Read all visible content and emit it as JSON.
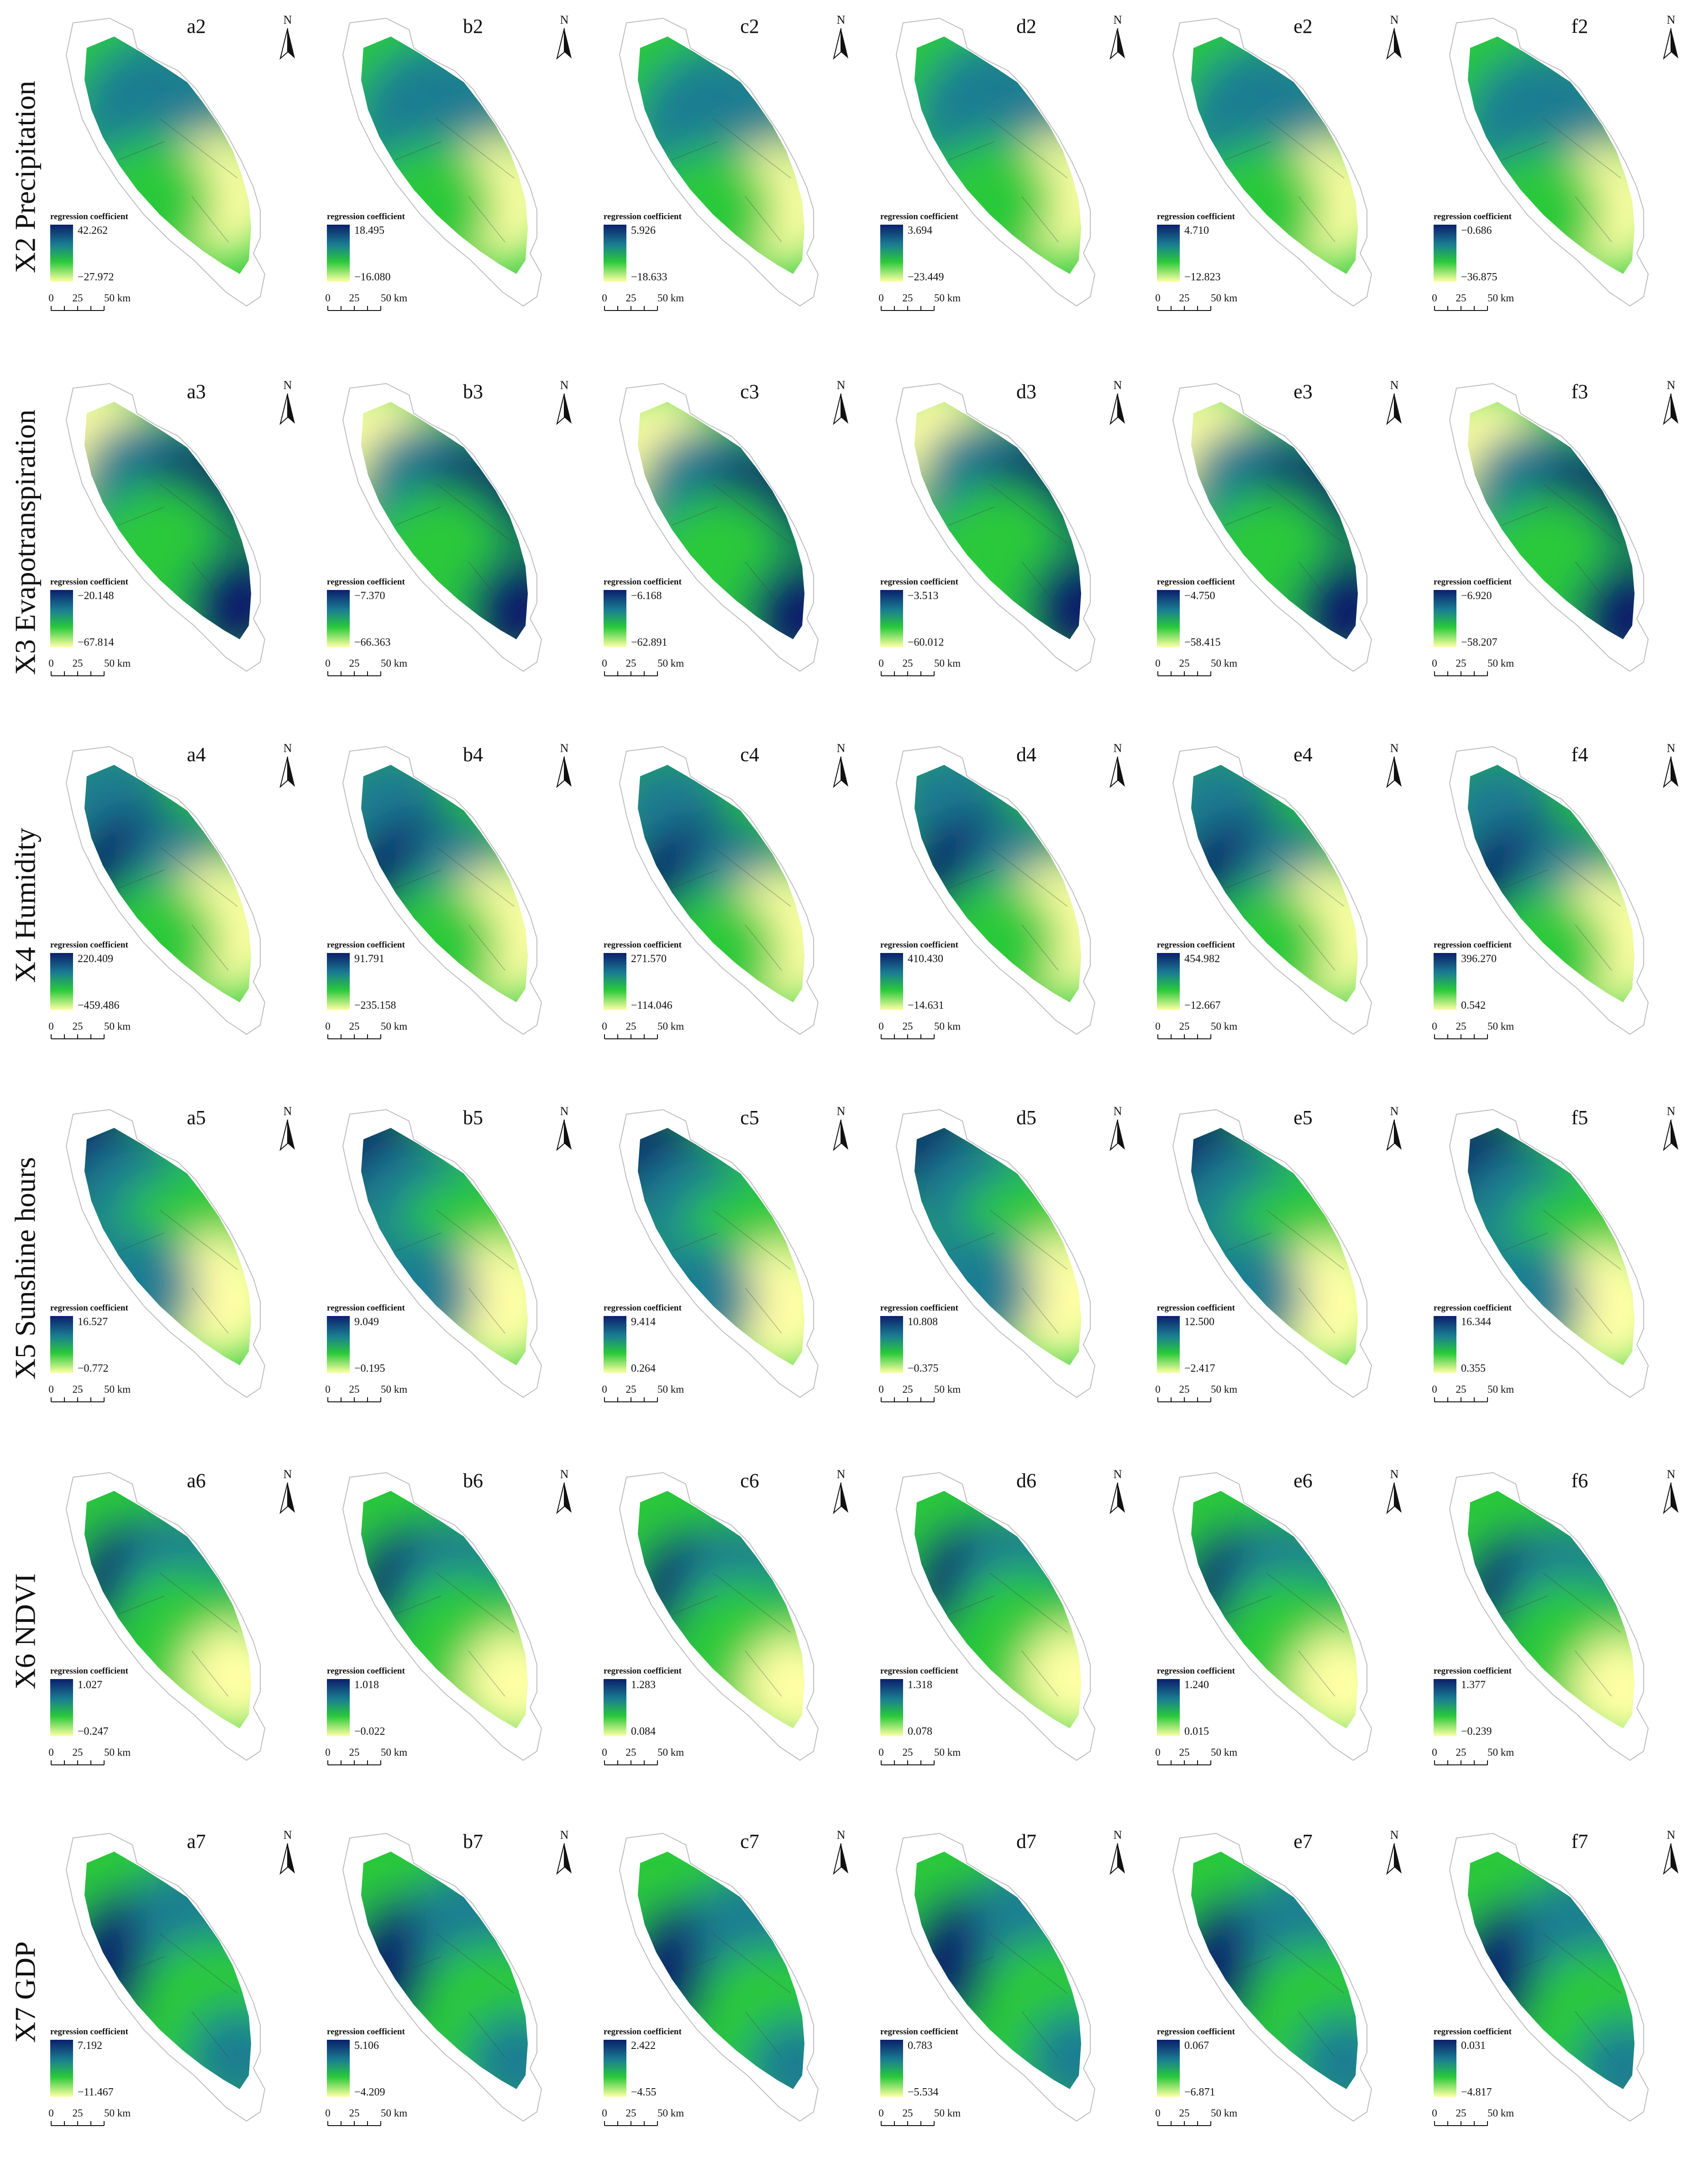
{
  "legend_title": "regression coefficient",
  "scale_bar": {
    "ticks": [
      "0",
      "25",
      "50 km"
    ]
  },
  "north_label": "N",
  "colors": {
    "high": "#0b1f6b",
    "mid_high": "#1a7d92",
    "mid": "#29c93a",
    "low": "#ffffa6",
    "outline": "#bdbdbd",
    "water": "#ffffff"
  },
  "columns": [
    "a",
    "b",
    "c",
    "d",
    "e",
    "f"
  ],
  "rows": [
    {
      "label": "X2 Precipitation",
      "panels": [
        {
          "id": "a2",
          "max": "42.262",
          "min": "−27.972"
        },
        {
          "id": "b2",
          "max": "18.495",
          "min": "−16.080"
        },
        {
          "id": "c2",
          "max": "5.926",
          "min": "−18.633"
        },
        {
          "id": "d2",
          "max": "3.694",
          "min": "−23.449"
        },
        {
          "id": "e2",
          "max": "4.710",
          "min": "−12.823"
        },
        {
          "id": "f2",
          "max": "−0.686",
          "min": "−36.875"
        }
      ]
    },
    {
      "label": "X3 Evapotranspiration",
      "panels": [
        {
          "id": "a3",
          "max": "−20.148",
          "min": "−67.814"
        },
        {
          "id": "b3",
          "max": "−7.370",
          "min": "−66.363"
        },
        {
          "id": "c3",
          "max": "−6.168",
          "min": "−62.891"
        },
        {
          "id": "d3",
          "max": "−3.513",
          "min": "−60.012"
        },
        {
          "id": "e3",
          "max": "−4.750",
          "min": "−58.415"
        },
        {
          "id": "f3",
          "max": "−6.920",
          "min": "−58.207"
        }
      ]
    },
    {
      "label": "X4 Humidity",
      "panels": [
        {
          "id": "a4",
          "max": "220.409",
          "min": "−459.486"
        },
        {
          "id": "b4",
          "max": "91.791",
          "min": "−235.158"
        },
        {
          "id": "c4",
          "max": "271.570",
          "min": "−114.046"
        },
        {
          "id": "d4",
          "max": "410.430",
          "min": "−14.631"
        },
        {
          "id": "e4",
          "max": "454.982",
          "min": "−12.667"
        },
        {
          "id": "f4",
          "max": "396.270",
          "min": "0.542"
        }
      ]
    },
    {
      "label": "X5 Sunshine hours",
      "panels": [
        {
          "id": "a5",
          "max": "16.527",
          "min": "−0.772"
        },
        {
          "id": "b5",
          "max": "9.049",
          "min": "−0.195"
        },
        {
          "id": "c5",
          "max": "9.414",
          "min": "0.264"
        },
        {
          "id": "d5",
          "max": "10.808",
          "min": "−0.375"
        },
        {
          "id": "e5",
          "max": "12.500",
          "min": "−2.417"
        },
        {
          "id": "f5",
          "max": "16.344",
          "min": "0.355"
        }
      ]
    },
    {
      "label": "X6 NDVI",
      "panels": [
        {
          "id": "a6",
          "max": "1.027",
          "min": "−0.247"
        },
        {
          "id": "b6",
          "max": "1.018",
          "min": "−0.022"
        },
        {
          "id": "c6",
          "max": "1.283",
          "min": "0.084"
        },
        {
          "id": "d6",
          "max": "1.318",
          "min": "0.078"
        },
        {
          "id": "e6",
          "max": "1.240",
          "min": "0.015"
        },
        {
          "id": "f6",
          "max": "1.377",
          "min": "−0.239"
        }
      ]
    },
    {
      "label": "X7 GDP",
      "panels": [
        {
          "id": "a7",
          "max": "7.192",
          "min": "−11.467"
        },
        {
          "id": "b7",
          "max": "5.106",
          "min": "−4.209"
        },
        {
          "id": "c7",
          "max": "2.422",
          "min": "−4.55"
        },
        {
          "id": "d7",
          "max": "0.783",
          "min": "−5.534"
        },
        {
          "id": "e7",
          "max": "0.067",
          "min": "−6.871"
        },
        {
          "id": "f7",
          "max": "0.031",
          "min": "−4.817"
        }
      ]
    }
  ]
}
